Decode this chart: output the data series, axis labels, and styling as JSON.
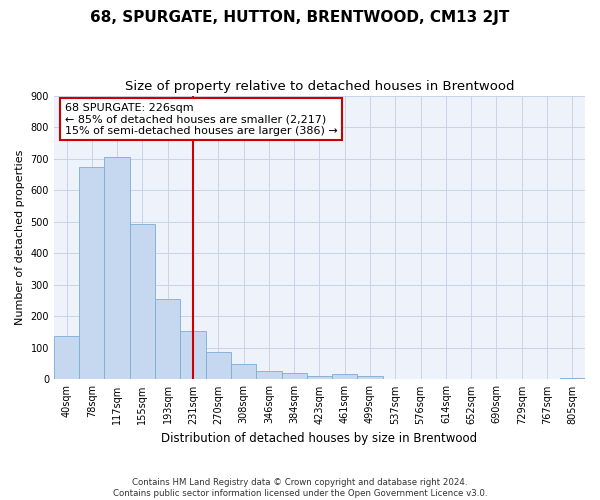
{
  "title": "68, SPURGATE, HUTTON, BRENTWOOD, CM13 2JT",
  "subtitle": "Size of property relative to detached houses in Brentwood",
  "xlabel": "Distribution of detached houses by size in Brentwood",
  "ylabel": "Number of detached properties",
  "bar_color": "#c5d8f0",
  "bar_edge_color": "#7aadd4",
  "grid_color": "#c8d4e8",
  "background_color": "#eef2fa",
  "vline_color": "#cc0000",
  "vline_x": 5,
  "annotation_text": "68 SPURGATE: 226sqm\n← 85% of detached houses are smaller (2,217)\n15% of semi-detached houses are larger (386) →",
  "categories": [
    "40sqm",
    "78sqm",
    "117sqm",
    "155sqm",
    "193sqm",
    "231sqm",
    "270sqm",
    "308sqm",
    "346sqm",
    "384sqm",
    "423sqm",
    "461sqm",
    "499sqm",
    "537sqm",
    "576sqm",
    "614sqm",
    "652sqm",
    "690sqm",
    "729sqm",
    "767sqm",
    "805sqm"
  ],
  "values": [
    138,
    673,
    706,
    493,
    256,
    153,
    87,
    50,
    27,
    19,
    11,
    18,
    11,
    0,
    0,
    0,
    0,
    0,
    0,
    0,
    6
  ],
  "ylim": [
    0,
    900
  ],
  "yticks": [
    0,
    100,
    200,
    300,
    400,
    500,
    600,
    700,
    800,
    900
  ],
  "footer": "Contains HM Land Registry data © Crown copyright and database right 2024.\nContains public sector information licensed under the Open Government Licence v3.0.",
  "title_fontsize": 11,
  "subtitle_fontsize": 9.5,
  "axis_label_fontsize": 8.5,
  "tick_fontsize": 7,
  "ylabel_fontsize": 8,
  "annotation_fontsize": 8
}
